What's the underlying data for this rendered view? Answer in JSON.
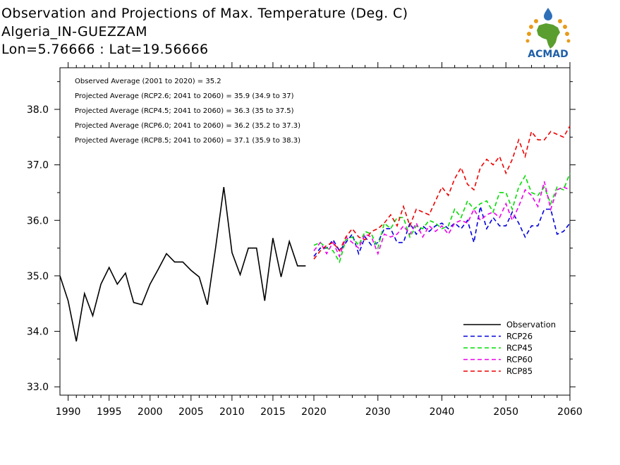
{
  "header": {
    "title_line1": "Observation and Projections of Max. Temperature (Deg. C)",
    "title_line2": "Algeria_IN-GUEZZAM",
    "title_line3": "Lon=5.76666 : Lat=19.56666"
  },
  "logo": {
    "text": "ACMAD",
    "colors": {
      "africa": "#5a9e2f",
      "ring": "#e89b1a",
      "drop": "#2f6fb8",
      "text": "#1f5fa8"
    }
  },
  "annotations": [
    "Observed Average (2001 to 2020) = 35.2",
    "Projected Average (RCP2.6; 2041 to 2060) = 35.9 (34.9 to 37)",
    "Projected Average (RCP4.5; 2041 to 2060) = 36.3 (35 to 37.5)",
    "Projected Average (RCP6.0; 2041 to 2060) = 36.2 (35.2 to 37.3)",
    "Projected Average (RCP8.5; 2041 to 2060) = 37.1 (35.9 to 38.3)"
  ],
  "chart_data": {
    "type": "line",
    "title": "Observation and Projections of Max. Temperature (Deg. C)",
    "xlim": [
      1989,
      2060
    ],
    "ylim": [
      32.85,
      38.75
    ],
    "grid": false,
    "legend_position": "bottom-right",
    "y_ticks": [
      "33.0",
      "34.0",
      "35.0",
      "36.0",
      "37.0",
      "38.0"
    ],
    "y_tick_values": [
      33.0,
      34.0,
      35.0,
      36.0,
      37.0,
      38.0
    ],
    "x_tick_labels": [
      "1990",
      "1995",
      "2000",
      "2005",
      "2010",
      "2015",
      "2020",
      "2030",
      "2040",
      "2050",
      "2060"
    ],
    "x_tick_values": [
      1990,
      1995,
      2000,
      2005,
      2010,
      2015,
      2020,
      2030,
      2040,
      2050,
      2060
    ],
    "series": [
      {
        "name": "Observation",
        "color": "#000000",
        "dashed": false,
        "x": [
          1989,
          1990,
          1991,
          1992,
          1993,
          1994,
          1995,
          1996,
          1997,
          1998,
          1999,
          2000,
          2001,
          2002,
          2003,
          2004,
          2005,
          2006,
          2007,
          2008,
          2009,
          2010,
          2011,
          2012,
          2013,
          2014,
          2015,
          2016,
          2017,
          2018,
          2019
        ],
        "y": [
          35.0,
          34.55,
          33.82,
          34.68,
          34.28,
          34.85,
          35.15,
          34.85,
          35.05,
          34.52,
          34.48,
          34.85,
          35.12,
          35.4,
          35.25,
          35.25,
          35.1,
          34.98,
          34.48,
          35.5,
          36.6,
          35.42,
          35.02,
          35.5,
          35.5,
          34.55,
          35.68,
          34.98,
          35.62,
          35.18,
          35.18
        ]
      },
      {
        "name": "RCP26",
        "color": "#0000dd",
        "dashed": true,
        "x": [
          2020,
          2021,
          2022,
          2023,
          2024,
          2025,
          2026,
          2027,
          2028,
          2029,
          2030,
          2031,
          2032,
          2033,
          2034,
          2035,
          2036,
          2037,
          2038,
          2039,
          2040,
          2041,
          2042,
          2043,
          2044,
          2045,
          2046,
          2047,
          2048,
          2049,
          2050,
          2051,
          2052,
          2053,
          2054,
          2055,
          2056,
          2057,
          2058,
          2059,
          2060
        ],
        "y": [
          35.35,
          35.5,
          35.5,
          35.65,
          35.45,
          35.6,
          35.75,
          35.4,
          35.7,
          35.55,
          35.6,
          35.85,
          35.85,
          35.6,
          35.6,
          35.95,
          35.75,
          35.9,
          35.8,
          35.9,
          35.95,
          35.85,
          35.95,
          35.85,
          36.0,
          35.6,
          36.25,
          35.85,
          36.05,
          35.9,
          35.9,
          36.15,
          35.95,
          35.7,
          35.9,
          35.9,
          36.2,
          36.2,
          35.75,
          35.8,
          35.95
        ]
      },
      {
        "name": "RCP45",
        "color": "#00dd00",
        "dashed": true,
        "x": [
          2020,
          2021,
          2022,
          2023,
          2024,
          2025,
          2026,
          2027,
          2028,
          2029,
          2030,
          2031,
          2032,
          2033,
          2034,
          2035,
          2036,
          2037,
          2038,
          2039,
          2040,
          2041,
          2042,
          2043,
          2044,
          2045,
          2046,
          2047,
          2048,
          2049,
          2050,
          2051,
          2052,
          2053,
          2054,
          2055,
          2056,
          2057,
          2058,
          2059,
          2060
        ],
        "y": [
          35.55,
          35.6,
          35.5,
          35.45,
          35.25,
          35.65,
          35.7,
          35.55,
          35.8,
          35.75,
          35.5,
          35.95,
          35.85,
          36.05,
          36.05,
          35.7,
          35.9,
          35.85,
          36.0,
          35.95,
          35.85,
          35.9,
          36.2,
          36.05,
          36.35,
          36.2,
          36.3,
          36.35,
          36.15,
          36.5,
          36.5,
          36.2,
          36.6,
          36.8,
          36.5,
          36.45,
          36.6,
          36.3,
          36.6,
          36.55,
          36.85
        ]
      },
      {
        "name": "RCP60",
        "color": "#ee00ee",
        "dashed": true,
        "x": [
          2020,
          2021,
          2022,
          2023,
          2024,
          2025,
          2026,
          2027,
          2028,
          2029,
          2030,
          2031,
          2032,
          2033,
          2034,
          2035,
          2036,
          2037,
          2038,
          2039,
          2040,
          2041,
          2042,
          2043,
          2044,
          2045,
          2046,
          2047,
          2048,
          2049,
          2050,
          2051,
          2052,
          2053,
          2054,
          2055,
          2056,
          2057,
          2058,
          2059,
          2060
        ],
        "y": [
          35.45,
          35.6,
          35.4,
          35.6,
          35.35,
          35.7,
          35.6,
          35.5,
          35.75,
          35.7,
          35.4,
          35.75,
          35.7,
          35.75,
          35.9,
          35.75,
          35.95,
          35.7,
          35.9,
          35.8,
          35.9,
          35.75,
          35.95,
          36.0,
          35.95,
          36.2,
          36.0,
          36.1,
          36.15,
          36.05,
          36.3,
          36.0,
          36.25,
          36.55,
          36.45,
          36.25,
          36.7,
          36.2,
          36.55,
          36.6,
          36.55
        ]
      },
      {
        "name": "RCP85",
        "color": "#ee0000",
        "dashed": true,
        "x": [
          2020,
          2021,
          2022,
          2023,
          2024,
          2025,
          2026,
          2027,
          2028,
          2029,
          2030,
          2031,
          2032,
          2033,
          2034,
          2035,
          2036,
          2037,
          2038,
          2039,
          2040,
          2041,
          2042,
          2043,
          2044,
          2045,
          2046,
          2047,
          2048,
          2049,
          2050,
          2051,
          2052,
          2053,
          2054,
          2055,
          2056,
          2057,
          2058,
          2059,
          2060
        ],
        "y": [
          35.3,
          35.45,
          35.55,
          35.6,
          35.45,
          35.7,
          35.85,
          35.7,
          35.65,
          35.8,
          35.85,
          35.95,
          36.1,
          35.9,
          36.25,
          35.9,
          36.2,
          36.15,
          36.1,
          36.35,
          36.6,
          36.45,
          36.75,
          36.95,
          36.65,
          36.55,
          36.95,
          37.1,
          37.0,
          37.15,
          36.85,
          37.1,
          37.45,
          37.15,
          37.6,
          37.45,
          37.45,
          37.6,
          37.55,
          37.5,
          37.7
        ]
      }
    ]
  }
}
